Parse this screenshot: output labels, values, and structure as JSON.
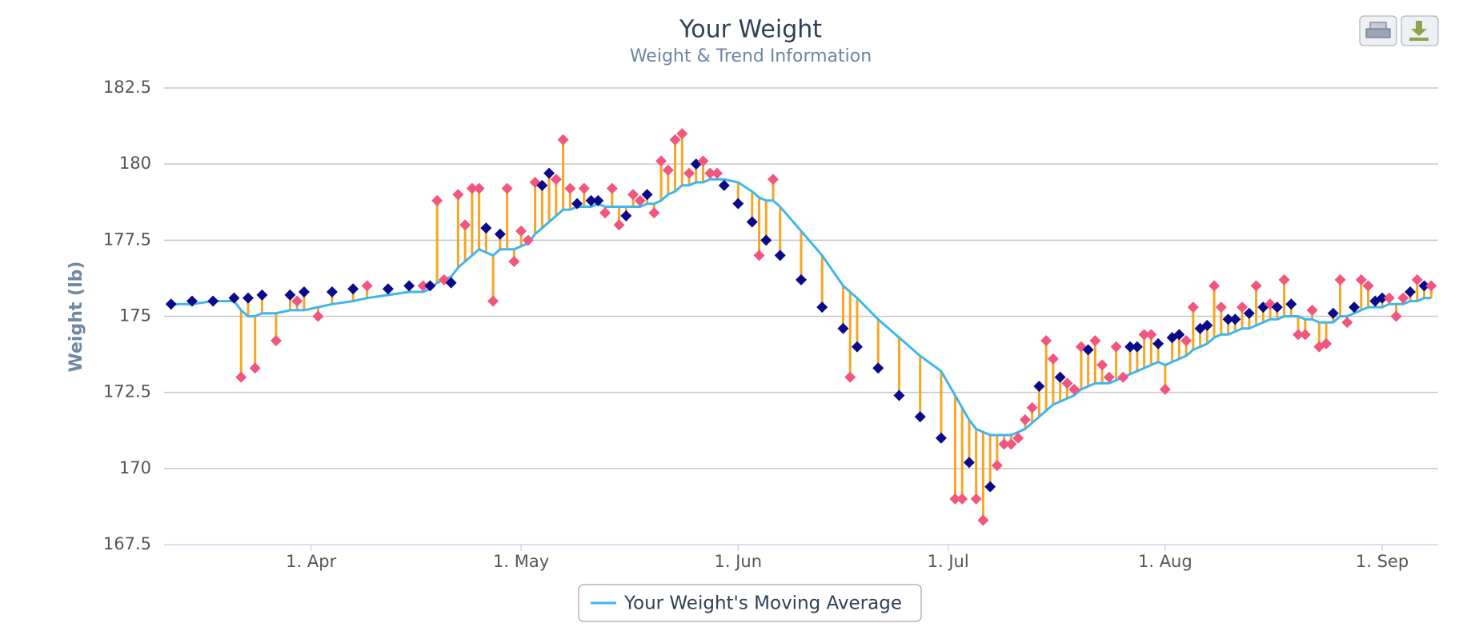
{
  "chart_data": {
    "type": "line",
    "title": "Your Weight",
    "subtitle": "Weight & Trend Information",
    "y_label": "Weight (lb)",
    "x": [
      "03-12",
      "03-15",
      "03-18",
      "03-21",
      "03-22",
      "03-23",
      "03-24",
      "03-25",
      "03-27",
      "03-29",
      "03-30",
      "03-31",
      "04-02",
      "04-04",
      "04-07",
      "04-09",
      "04-12",
      "04-15",
      "04-17",
      "04-18",
      "04-19",
      "04-20",
      "04-21",
      "04-22",
      "04-23",
      "04-24",
      "04-25",
      "04-26",
      "04-27",
      "04-28",
      "04-29",
      "04-30",
      "05-01",
      "05-02",
      "05-03",
      "05-04",
      "05-05",
      "05-06",
      "05-07",
      "05-08",
      "05-09",
      "05-10",
      "05-11",
      "05-12",
      "05-13",
      "05-14",
      "05-15",
      "05-16",
      "05-17",
      "05-18",
      "05-19",
      "05-20",
      "05-21",
      "05-22",
      "05-23",
      "05-24",
      "05-25",
      "05-26",
      "05-27",
      "05-28",
      "05-29",
      "05-30",
      "06-01",
      "06-03",
      "06-04",
      "06-05",
      "06-06",
      "06-07",
      "06-10",
      "06-13",
      "06-16",
      "06-17",
      "06-18",
      "06-21",
      "06-24",
      "06-27",
      "06-30",
      "07-02",
      "07-03",
      "07-04",
      "07-05",
      "07-06",
      "07-07",
      "07-08",
      "07-09",
      "07-10",
      "07-11",
      "07-12",
      "07-13",
      "07-14",
      "07-15",
      "07-16",
      "07-17",
      "07-18",
      "07-19",
      "07-20",
      "07-21",
      "07-22",
      "07-23",
      "07-24",
      "07-25",
      "07-26",
      "07-27",
      "07-28",
      "07-29",
      "07-30",
      "07-31",
      "08-01",
      "08-02",
      "08-03",
      "08-04",
      "08-05",
      "08-06",
      "08-07",
      "08-08",
      "08-09",
      "08-10",
      "08-11",
      "08-12",
      "08-13",
      "08-14",
      "08-15",
      "08-16",
      "08-17",
      "08-18",
      "08-19",
      "08-20",
      "08-21",
      "08-22",
      "08-23",
      "08-24",
      "08-25",
      "08-26",
      "08-27",
      "08-28",
      "08-29",
      "08-30",
      "08-31",
      "09-01",
      "09-02",
      "09-03",
      "09-04",
      "09-05",
      "09-06",
      "09-07",
      "09-08"
    ],
    "series": [
      {
        "name": "Your Weight's Moving Average",
        "color": "#3fb6ee",
        "values": [
          175.4,
          175.4,
          175.5,
          175.5,
          175.2,
          175.0,
          175.0,
          175.1,
          175.1,
          175.2,
          175.2,
          175.2,
          175.3,
          175.4,
          175.5,
          175.6,
          175.7,
          175.8,
          175.8,
          175.9,
          176.1,
          176.2,
          176.3,
          176.6,
          176.8,
          177.0,
          177.2,
          177.1,
          177.0,
          177.2,
          177.2,
          177.2,
          177.3,
          177.4,
          177.7,
          177.9,
          178.1,
          178.3,
          178.5,
          178.5,
          178.6,
          178.6,
          178.6,
          178.7,
          178.6,
          178.6,
          178.6,
          178.6,
          178.6,
          178.6,
          178.7,
          178.7,
          178.8,
          179.0,
          179.1,
          179.3,
          179.3,
          179.4,
          179.4,
          179.5,
          179.5,
          179.5,
          179.4,
          179.1,
          178.9,
          178.8,
          178.8,
          178.6,
          177.8,
          177.0,
          176.0,
          175.8,
          175.6,
          174.9,
          174.3,
          173.7,
          173.2,
          172.4,
          172.0,
          171.6,
          171.3,
          171.2,
          171.1,
          171.1,
          171.1,
          171.1,
          171.2,
          171.3,
          171.5,
          171.7,
          171.9,
          172.1,
          172.2,
          172.3,
          172.4,
          172.6,
          172.7,
          172.8,
          172.8,
          172.8,
          172.9,
          173.0,
          173.1,
          173.2,
          173.3,
          173.4,
          173.5,
          173.4,
          173.5,
          173.6,
          173.7,
          173.9,
          174.0,
          174.1,
          174.3,
          174.4,
          174.4,
          174.5,
          174.6,
          174.6,
          174.7,
          174.8,
          174.9,
          174.9,
          175.0,
          175.0,
          175.0,
          174.9,
          174.9,
          174.8,
          174.8,
          174.8,
          175.0,
          175.0,
          175.1,
          175.2,
          175.3,
          175.3,
          175.3,
          175.4,
          175.4,
          175.4,
          175.5,
          175.5,
          175.6,
          175.6
        ]
      }
    ],
    "weights": {
      "color": "#f2557d",
      "interpolated_color": "#0b0b8a",
      "stem_color": "#f5a623",
      "values": [
        175.4,
        175.5,
        175.5,
        175.6,
        173.0,
        175.6,
        173.3,
        175.7,
        174.2,
        175.7,
        175.5,
        175.8,
        175.0,
        175.8,
        175.9,
        176.0,
        175.9,
        176.0,
        176.0,
        176.0,
        178.8,
        176.2,
        176.1,
        179.0,
        178.0,
        179.2,
        179.2,
        177.9,
        175.5,
        177.7,
        179.2,
        176.8,
        177.8,
        177.5,
        179.4,
        179.3,
        179.7,
        179.5,
        180.8,
        179.2,
        178.7,
        179.2,
        178.8,
        178.8,
        178.4,
        179.2,
        178.0,
        178.3,
        179.0,
        178.8,
        179.0,
        178.4,
        180.1,
        179.8,
        180.8,
        181.0,
        179.7,
        180.0,
        180.1,
        179.7,
        179.7,
        179.3,
        178.7,
        178.1,
        177.0,
        177.5,
        179.5,
        177.0,
        176.2,
        175.3,
        174.6,
        173.0,
        174.0,
        173.3,
        172.4,
        171.7,
        171.0,
        169.0,
        169.0,
        170.2,
        169.0,
        168.3,
        169.4,
        170.1,
        170.8,
        170.8,
        171.0,
        171.6,
        172.0,
        172.7,
        174.2,
        173.6,
        173.0,
        172.8,
        172.6,
        174.0,
        173.9,
        174.2,
        173.4,
        173.0,
        174.0,
        173.0,
        174.0,
        174.0,
        174.4,
        174.4,
        174.1,
        172.6,
        174.3,
        174.4,
        174.2,
        175.3,
        174.6,
        174.7,
        176.0,
        175.3,
        174.9,
        174.9,
        175.3,
        175.1,
        176.0,
        175.3,
        175.4,
        175.3,
        176.2,
        175.4,
        174.4,
        174.4,
        175.2,
        174.0,
        174.1,
        175.1,
        176.2,
        174.8,
        175.3,
        176.2,
        176.0,
        175.5,
        175.6,
        175.6,
        175.0,
        175.6,
        175.8,
        176.2,
        176.0,
        176.0
      ],
      "interpolated": [
        true,
        true,
        true,
        true,
        false,
        true,
        false,
        true,
        false,
        true,
        false,
        true,
        false,
        true,
        true,
        false,
        true,
        true,
        false,
        true,
        false,
        false,
        true,
        false,
        false,
        false,
        false,
        true,
        false,
        true,
        false,
        false,
        false,
        false,
        false,
        true,
        true,
        false,
        false,
        false,
        true,
        false,
        true,
        true,
        false,
        false,
        false,
        true,
        false,
        false,
        true,
        false,
        false,
        false,
        false,
        false,
        false,
        true,
        false,
        false,
        false,
        true,
        true,
        true,
        false,
        true,
        false,
        true,
        true,
        true,
        true,
        false,
        true,
        true,
        true,
        true,
        true,
        false,
        false,
        true,
        false,
        false,
        true,
        false,
        false,
        false,
        false,
        false,
        false,
        true,
        false,
        false,
        true,
        false,
        false,
        false,
        true,
        false,
        false,
        false,
        false,
        false,
        true,
        true,
        false,
        false,
        true,
        false,
        true,
        true,
        false,
        false,
        true,
        true,
        false,
        false,
        true,
        true,
        false,
        true,
        false,
        true,
        false,
        true,
        false,
        true,
        false,
        false,
        false,
        false,
        false,
        true,
        false,
        false,
        true,
        false,
        false,
        true,
        true,
        false,
        false,
        false,
        true,
        false,
        true,
        false
      ]
    },
    "xlim": [
      "03-11",
      "09-09"
    ],
    "xticks": [
      {
        "value": "04-01",
        "label": "1. Apr"
      },
      {
        "value": "05-01",
        "label": "1. May"
      },
      {
        "value": "06-01",
        "label": "1. Jun"
      },
      {
        "value": "07-01",
        "label": "1. Jul"
      },
      {
        "value": "08-01",
        "label": "1. Aug"
      },
      {
        "value": "09-01",
        "label": "1. Sep"
      }
    ],
    "ylim": [
      167.5,
      182.5
    ],
    "yticks": [
      167.5,
      170,
      172.5,
      175,
      177.5,
      180,
      182.5
    ],
    "grid": true
  }
}
